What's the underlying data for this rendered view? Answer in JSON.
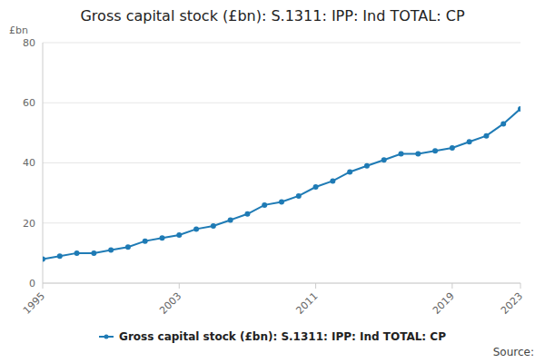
{
  "chart_data": {
    "type": "line",
    "title": "Gross capital stock (£bn): S.1311: IPP: Ind TOTAL: CP",
    "y_label": "£bn",
    "source": "Source:",
    "x": [
      1995,
      1996,
      1997,
      1998,
      1999,
      2000,
      2001,
      2002,
      2003,
      2004,
      2005,
      2006,
      2007,
      2008,
      2009,
      2010,
      2011,
      2012,
      2013,
      2014,
      2015,
      2016,
      2017,
      2018,
      2019,
      2020,
      2021,
      2022,
      2023
    ],
    "series": [
      {
        "name": "Gross capital stock (£bn): S.1311: IPP: Ind TOTAL: CP",
        "color": "#1f7bb5",
        "marker": "circle",
        "values": [
          8,
          9,
          10,
          10,
          11,
          12,
          14,
          15,
          16,
          18,
          19,
          21,
          23,
          26,
          27,
          29,
          32,
          34,
          37,
          39,
          41,
          43,
          43,
          44,
          45,
          47,
          49,
          53,
          58
        ]
      }
    ],
    "xlim": [
      1995,
      2023
    ],
    "xticks": [
      1995,
      2003,
      2011,
      2019,
      2023
    ],
    "ylim": [
      0,
      80
    ],
    "yticks": [
      0,
      20,
      40,
      60,
      80
    ],
    "grid": true,
    "legend": "bottom"
  }
}
